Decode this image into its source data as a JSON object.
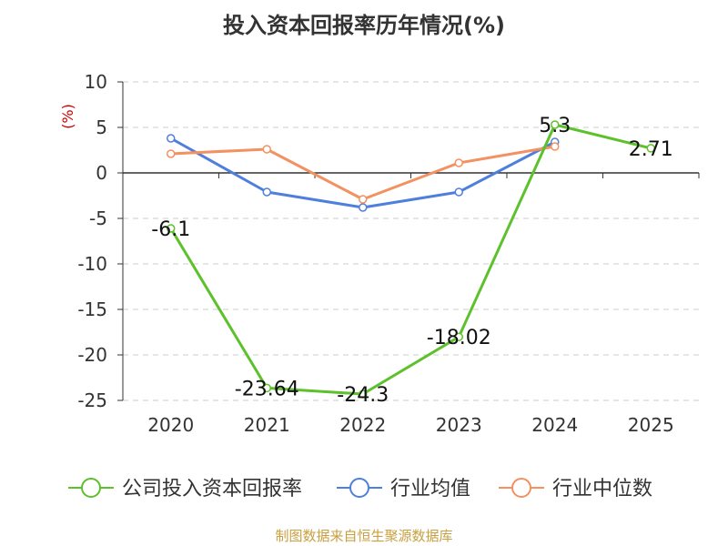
{
  "title": "投入资本回报率历年情况(%)",
  "footer": "制图数据来自恒生聚源数据库",
  "chart_data": {
    "type": "line",
    "title": "投入资本回报率历年情况(%)",
    "ylabel": "(%)",
    "xlabel": "",
    "categories": [
      "2020",
      "2021",
      "2022",
      "2023",
      "2024",
      "2025"
    ],
    "ylim": [
      -25,
      10
    ],
    "yticks": [
      10,
      5,
      0,
      -5,
      -10,
      -15,
      -20,
      -25
    ],
    "grid": true,
    "legend_position": "bottom",
    "series": [
      {
        "name": "公司投入资本回报率",
        "color": "#5cc12b",
        "values": [
          -6.1,
          -23.64,
          -24.3,
          -18.02,
          5.3,
          2.71
        ],
        "labels": [
          "-6.1",
          "-23.64",
          "-24.3",
          "-18.02",
          "5.3",
          "2.71"
        ]
      },
      {
        "name": "行业均值",
        "color": "#4f7fdc",
        "values": [
          3.8,
          -2.1,
          -3.8,
          -2.1,
          3.4,
          null
        ]
      },
      {
        "name": "行业中位数",
        "color": "#f39160",
        "values": [
          2.1,
          2.6,
          -2.9,
          1.1,
          2.9,
          null
        ]
      }
    ]
  }
}
